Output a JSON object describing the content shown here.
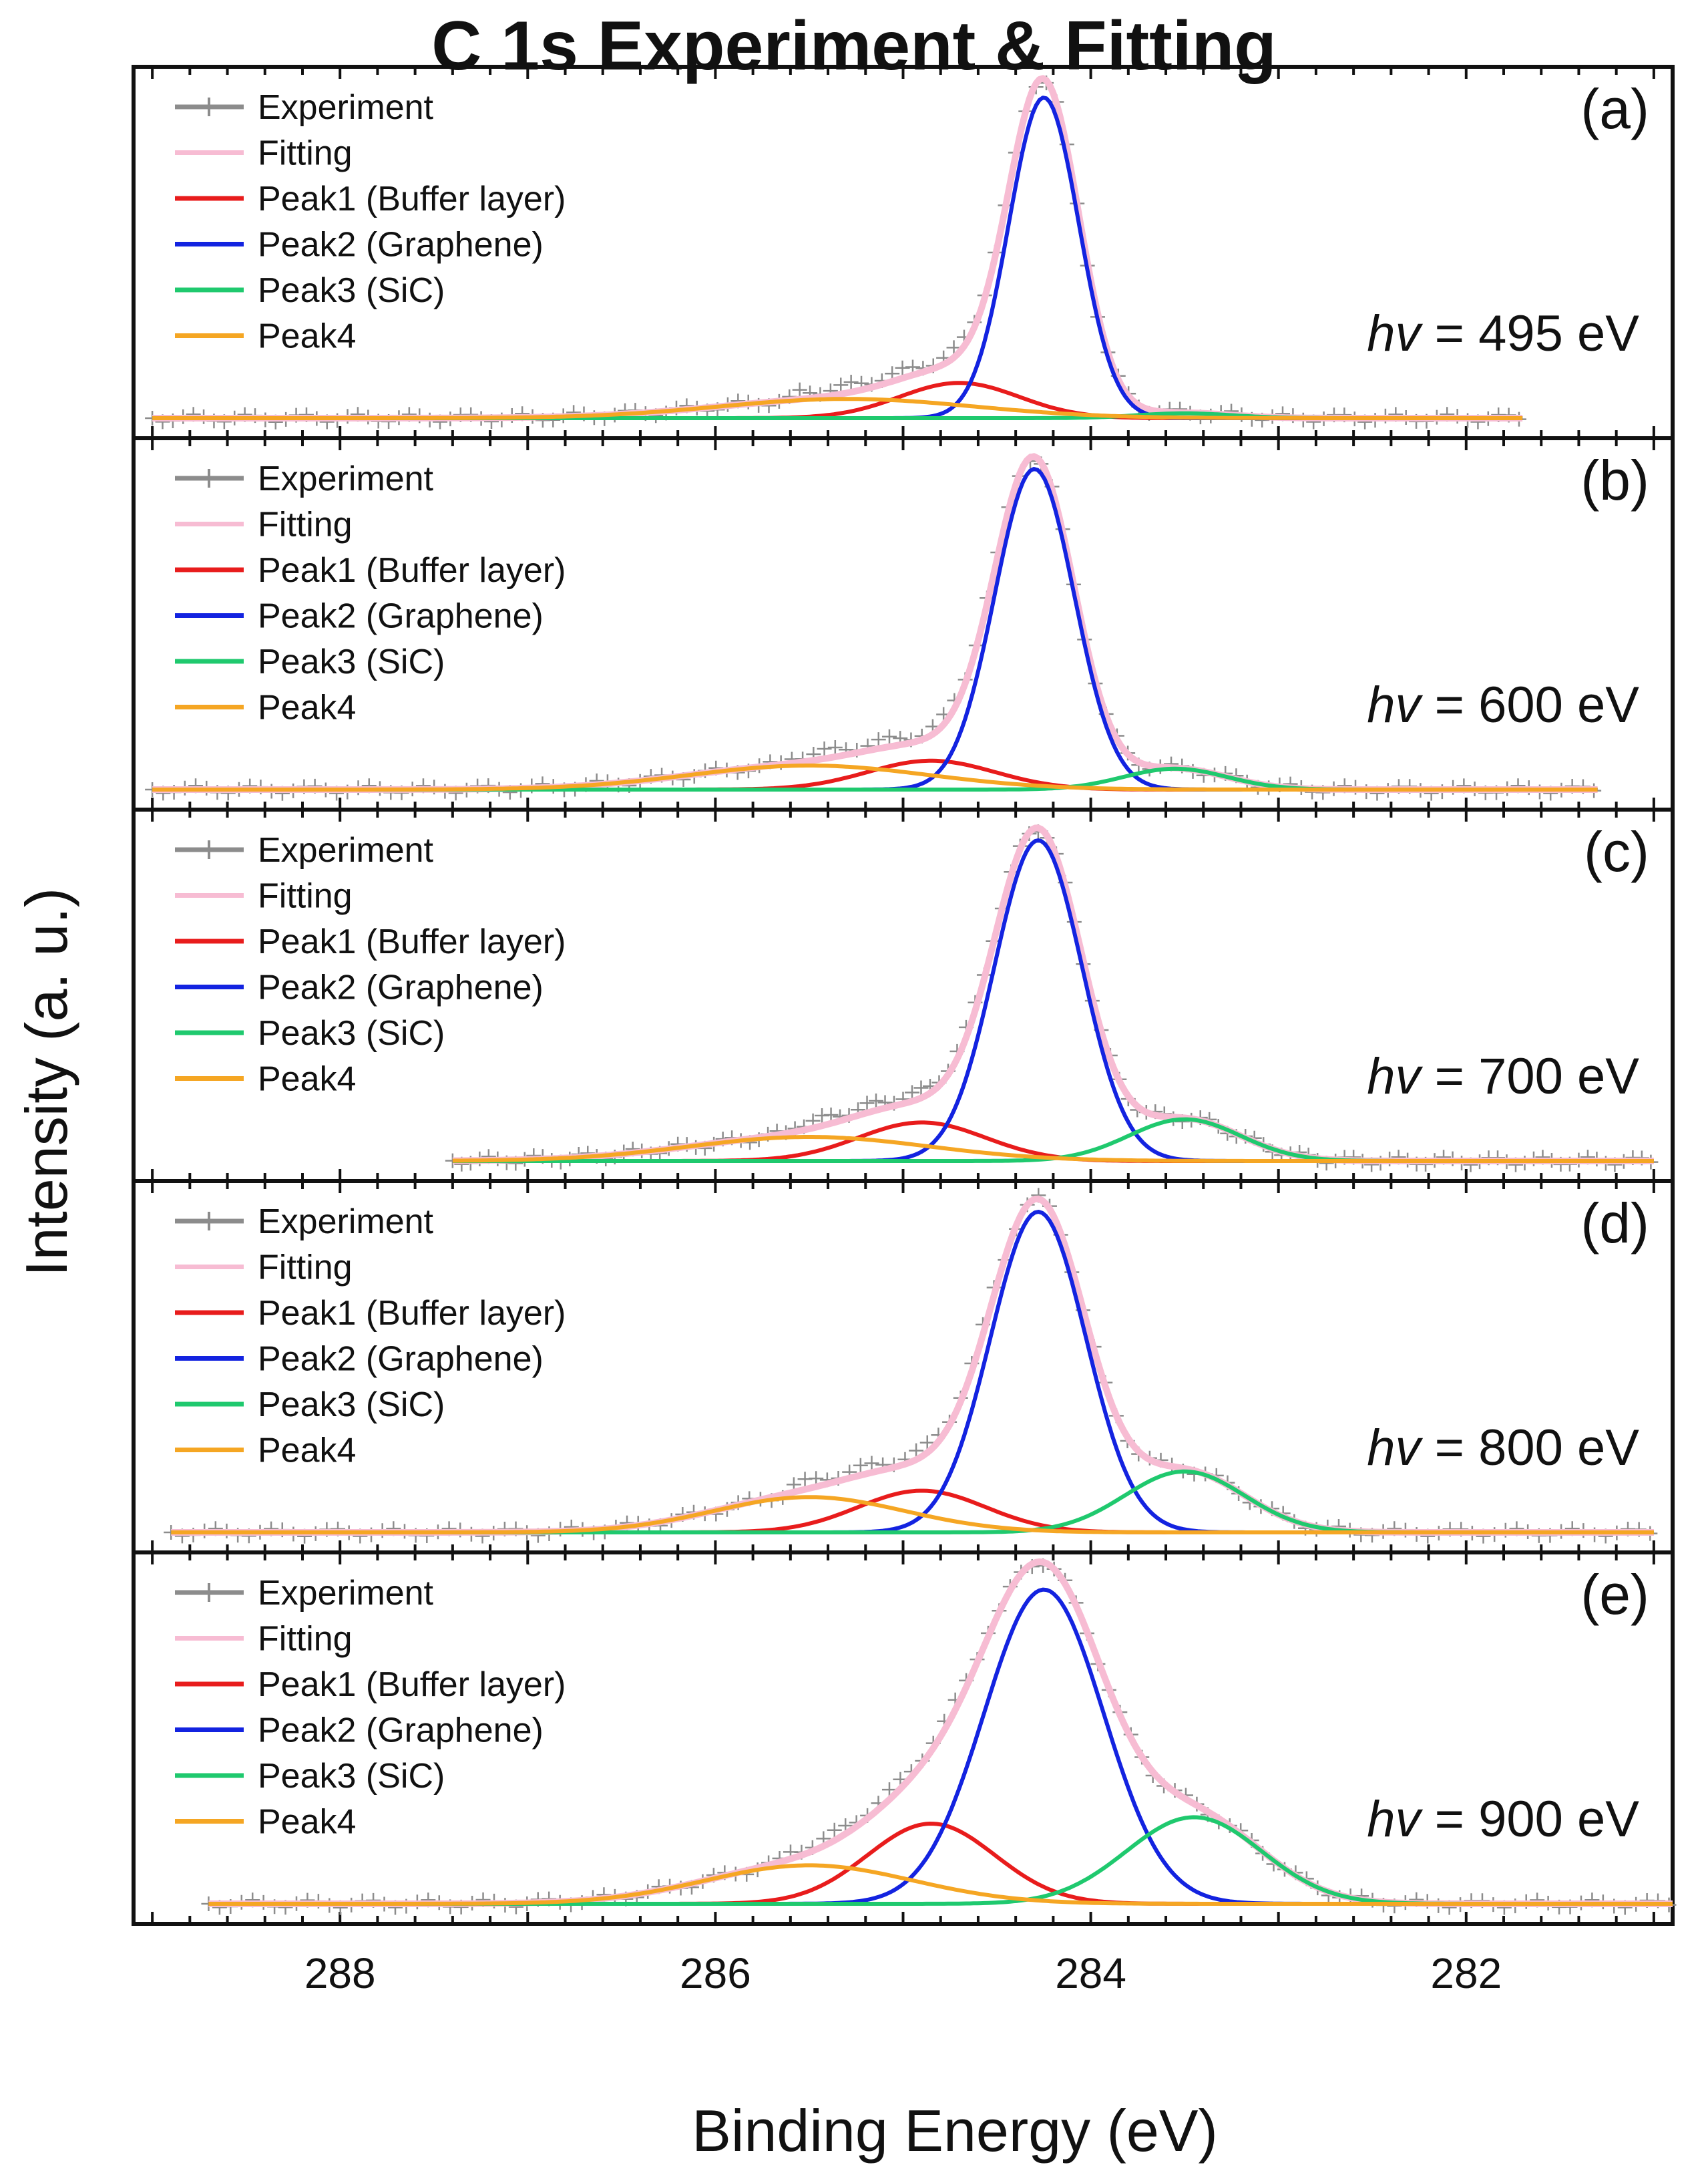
{
  "chart_data": {
    "type": "line",
    "title": "C 1s Experiment & Fitting",
    "xlabel": "Binding Energy (eV)",
    "ylabel": "Intensity (a. u.)",
    "xlim": [
      289.1,
      280.9
    ],
    "x_reversed": true,
    "x_ticks": [
      288,
      286,
      284,
      282
    ],
    "x_tick_labels": [
      "288",
      "286",
      "284",
      "282"
    ],
    "grid": false,
    "legend": {
      "placement": "top-left",
      "entries": [
        {
          "name": "Experiment",
          "color": "#8c8c8c",
          "marker": "+"
        },
        {
          "name": "Fitting",
          "color": "#f7bcd3"
        },
        {
          "name": "Peak1 (Buffer layer)",
          "color": "#e81c1c"
        },
        {
          "name": "Peak2 (Graphene)",
          "color": "#1323e0"
        },
        {
          "name": "Peak3 (SiC)",
          "color": "#1fc96e"
        },
        {
          "name": "Peak4",
          "color": "#f5a623"
        }
      ]
    },
    "panels": [
      {
        "letter": "(a)",
        "photon_prefix": "hv",
        "photon_value": "= 495 eV",
        "x_range": [
          289.0,
          281.7
        ],
        "peaks": {
          "peak1": {
            "center": 284.7,
            "amplitude": 0.11,
            "fwhm": 0.75
          },
          "peak2": {
            "center": 284.25,
            "amplitude": 1.0,
            "fwhm": 0.44
          },
          "peak3": {
            "center": 283.5,
            "amplitude": 0.015,
            "fwhm": 0.6
          },
          "peak4": {
            "center": 285.3,
            "amplitude": 0.06,
            "fwhm": 1.6
          }
        }
      },
      {
        "letter": "(b)",
        "photon_prefix": "hv",
        "photon_value": "= 600 eV",
        "x_range": [
          289.0,
          281.3
        ],
        "peaks": {
          "peak1": {
            "center": 284.85,
            "amplitude": 0.09,
            "fwhm": 0.8
          },
          "peak2": {
            "center": 284.3,
            "amplitude": 1.0,
            "fwhm": 0.5
          },
          "peak3": {
            "center": 283.55,
            "amplitude": 0.065,
            "fwhm": 0.65
          },
          "peak4": {
            "center": 285.5,
            "amplitude": 0.075,
            "fwhm": 1.5
          }
        }
      },
      {
        "letter": "(c)",
        "photon_prefix": "hv",
        "photon_value": "= 700 eV",
        "x_range": [
          287.4,
          281.0
        ],
        "peaks": {
          "peak1": {
            "center": 284.9,
            "amplitude": 0.12,
            "fwhm": 0.8
          },
          "peak2": {
            "center": 284.28,
            "amplitude": 1.0,
            "fwhm": 0.55
          },
          "peak3": {
            "center": 283.5,
            "amplitude": 0.13,
            "fwhm": 0.7
          },
          "peak4": {
            "center": 285.5,
            "amplitude": 0.075,
            "fwhm": 1.5
          }
        }
      },
      {
        "letter": "(d)",
        "photon_prefix": "hv",
        "photon_value": "= 800 eV",
        "x_range": [
          288.9,
          281.0
        ],
        "peaks": {
          "peak1": {
            "center": 284.9,
            "amplitude": 0.13,
            "fwhm": 0.8
          },
          "peak2": {
            "center": 284.28,
            "amplitude": 1.0,
            "fwhm": 0.6
          },
          "peak3": {
            "center": 283.5,
            "amplitude": 0.19,
            "fwhm": 0.75
          },
          "peak4": {
            "center": 285.5,
            "amplitude": 0.11,
            "fwhm": 1.2
          }
        }
      },
      {
        "letter": "(e)",
        "photon_prefix": "hv",
        "photon_value": "= 900 eV",
        "x_range": [
          288.7,
          280.9
        ],
        "peaks": {
          "peak1": {
            "center": 284.85,
            "amplitude": 0.25,
            "fwhm": 0.8
          },
          "peak2": {
            "center": 284.25,
            "amplitude": 0.98,
            "fwhm": 0.75
          },
          "peak3": {
            "center": 283.45,
            "amplitude": 0.27,
            "fwhm": 0.85
          },
          "peak4": {
            "center": 285.5,
            "amplitude": 0.12,
            "fwhm": 1.3
          }
        }
      }
    ]
  }
}
